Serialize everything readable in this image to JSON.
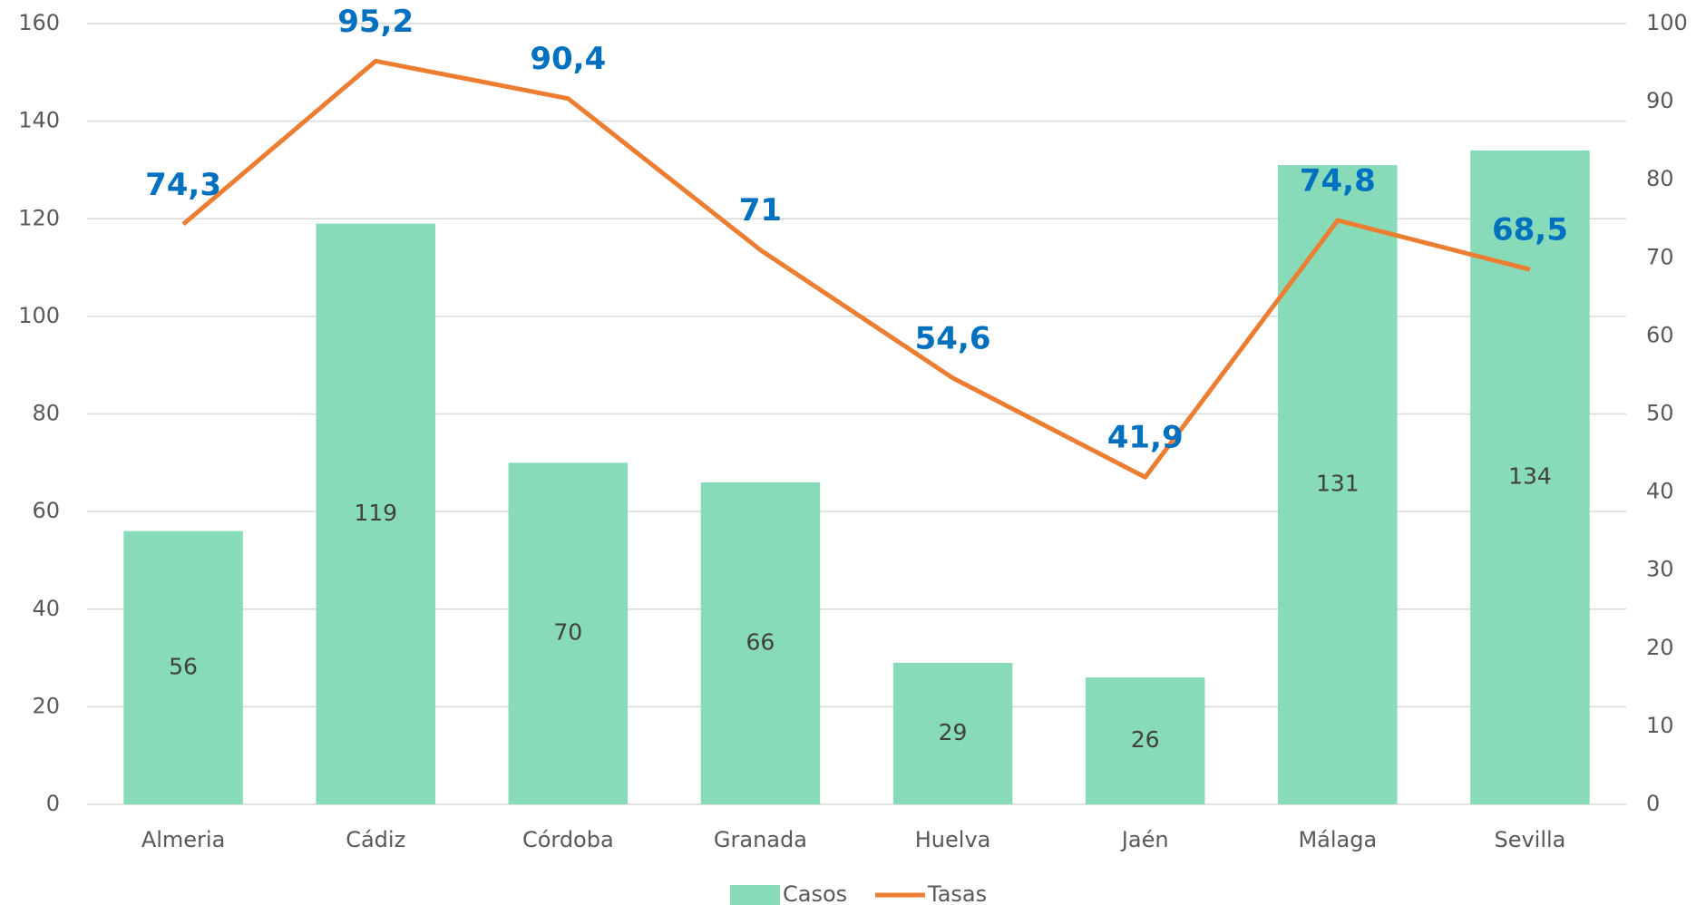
{
  "chart_data": {
    "type": "combo",
    "categories": [
      "Almeria",
      "Cádiz",
      "Córdoba",
      "Granada",
      "Huelva",
      "Jaén",
      "Málaga",
      "Sevilla"
    ],
    "series": [
      {
        "name": "Casos",
        "type": "bar",
        "color": "#88dbb9",
        "values": [
          56,
          119,
          70,
          66,
          29,
          26,
          131,
          134
        ]
      },
      {
        "name": "Tasas",
        "type": "line",
        "axis": "y2",
        "color": "#ed7d31",
        "values": [
          74.3,
          95.2,
          90.4,
          71,
          54.6,
          41.9,
          74.8,
          68.5
        ],
        "value_labels": [
          "74,3",
          "95,2",
          "90,4",
          "71",
          "54,6",
          "41,9",
          "74,8",
          "68,5"
        ]
      }
    ],
    "ylim": [
      0,
      160
    ],
    "yticks": [
      0,
      20,
      40,
      60,
      80,
      100,
      120,
      140,
      160
    ],
    "y2lim": [
      0,
      100
    ],
    "y2ticks": [
      0,
      10,
      20,
      30,
      40,
      50,
      60,
      70,
      80,
      90,
      100
    ],
    "grid": true,
    "legend": "bottom"
  }
}
